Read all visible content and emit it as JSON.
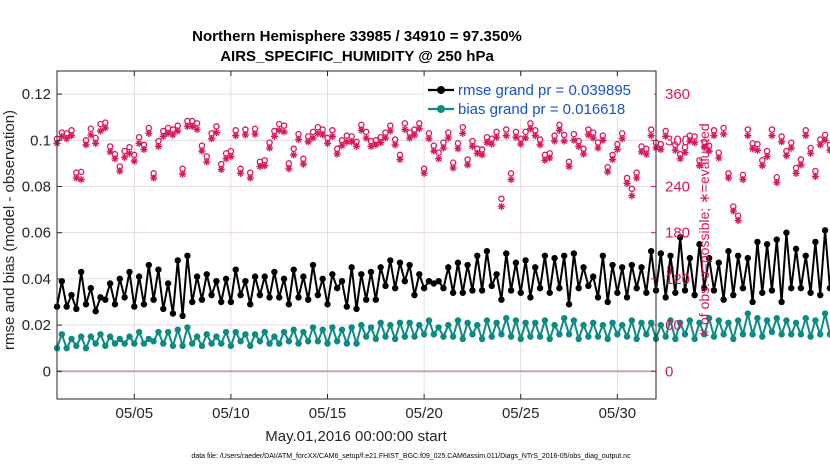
{
  "chart_data": {
    "type": "line",
    "title": "Northern Hemisphere 33985 / 34910 = 97.350%",
    "subtitle": "AIRS_SPECIFIC_HUMIDITY @ 250 hPa",
    "xlabel": "May.01,2016 00:00:00 start",
    "ylabel": "rmse and bias (model - observation)",
    "y2label": "# of obs: o=possible; ∗=evaluated",
    "xlim": [
      1,
      32
    ],
    "ylim": [
      -0.012,
      0.13
    ],
    "y2lim": [
      -36,
      390
    ],
    "x_ticks": [
      5,
      10,
      15,
      20,
      25,
      30
    ],
    "x_tick_labels": [
      "05/05",
      "05/10",
      "05/15",
      "05/20",
      "05/25",
      "05/30"
    ],
    "y_ticks": [
      0,
      0.02,
      0.04,
      0.06,
      0.08,
      0.1,
      0.12
    ],
    "y_tick_labels": [
      "0",
      "0.02",
      "0.04",
      "0.06",
      "0.08",
      "0.1",
      "0.12"
    ],
    "y2_ticks": [
      0,
      60,
      120,
      180,
      240,
      300,
      360
    ],
    "y2_tick_labels": [
      "0",
      "60",
      "120",
      "180",
      "240",
      "300",
      "360"
    ],
    "legend_position": "top-right",
    "colors": {
      "rmse": "#000000",
      "bias": "#0e8a84",
      "obs": "#d6175e",
      "grid": "#e3d2d9",
      "zero_line": "#c9a3b0"
    },
    "series": [
      {
        "name": "rmse grand pr = 0.039895",
        "marker": "circle",
        "start_day": 1.0,
        "step_days": 0.25,
        "values": [
          0.028,
          0.039,
          0.028,
          0.033,
          0.027,
          0.043,
          0.029,
          0.036,
          0.026,
          0.032,
          0.031,
          0.038,
          0.029,
          0.04,
          0.032,
          0.043,
          0.028,
          0.041,
          0.029,
          0.046,
          0.031,
          0.044,
          0.027,
          0.038,
          0.025,
          0.048,
          0.024,
          0.05,
          0.03,
          0.041,
          0.031,
          0.042,
          0.033,
          0.039,
          0.03,
          0.04,
          0.03,
          0.044,
          0.033,
          0.039,
          0.029,
          0.041,
          0.033,
          0.041,
          0.032,
          0.043,
          0.032,
          0.04,
          0.029,
          0.044,
          0.032,
          0.041,
          0.031,
          0.046,
          0.033,
          0.04,
          0.029,
          0.042,
          0.036,
          0.039,
          0.028,
          0.045,
          0.027,
          0.042,
          0.031,
          0.043,
          0.031,
          0.045,
          0.037,
          0.048,
          0.036,
          0.047,
          0.039,
          0.046,
          0.033,
          0.042,
          0.036,
          0.039,
          0.038,
          0.039,
          0.036,
          0.045,
          0.034,
          0.047,
          0.034,
          0.046,
          0.035,
          0.05,
          0.035,
          0.052,
          0.037,
          0.042,
          0.031,
          0.051,
          0.035,
          0.047,
          0.034,
          0.048,
          0.032,
          0.045,
          0.036,
          0.05,
          0.034,
          0.049,
          0.036,
          0.05,
          0.029,
          0.051,
          0.036,
          0.045,
          0.037,
          0.041,
          0.032,
          0.05,
          0.03,
          0.046,
          0.034,
          0.045,
          0.032,
          0.046,
          0.036,
          0.045,
          0.034,
          0.052,
          0.035,
          0.051,
          0.032,
          0.05,
          0.034,
          0.058,
          0.035,
          0.049,
          0.033,
          0.055,
          0.036,
          0.049,
          0.035,
          0.047,
          0.031,
          0.052,
          0.033,
          0.05,
          0.036,
          0.049,
          0.03,
          0.056,
          0.034,
          0.055,
          0.035,
          0.057,
          0.03,
          0.06,
          0.036,
          0.053,
          0.036,
          0.05,
          0.034,
          0.056,
          0.033,
          0.061,
          0.036,
          0.058,
          0.031,
          0.052,
          0.035,
          0.049,
          0.038,
          0.048,
          0.04,
          0.055,
          0.04,
          0.054,
          0.038,
          0.054,
          0.04,
          0.055,
          0.039
        ]
      },
      {
        "name": "bias grand pr = 0.016618",
        "marker": "circle",
        "start_day": 1.0,
        "step_days": 0.25,
        "values": [
          0.01,
          0.016,
          0.01,
          0.014,
          0.011,
          0.015,
          0.01,
          0.015,
          0.012,
          0.016,
          0.011,
          0.015,
          0.012,
          0.014,
          0.012,
          0.015,
          0.012,
          0.017,
          0.012,
          0.014,
          0.013,
          0.017,
          0.012,
          0.017,
          0.011,
          0.018,
          0.011,
          0.019,
          0.012,
          0.015,
          0.011,
          0.016,
          0.012,
          0.015,
          0.012,
          0.017,
          0.011,
          0.017,
          0.013,
          0.016,
          0.011,
          0.016,
          0.013,
          0.017,
          0.012,
          0.015,
          0.012,
          0.017,
          0.013,
          0.018,
          0.012,
          0.017,
          0.013,
          0.019,
          0.013,
          0.018,
          0.012,
          0.019,
          0.013,
          0.018,
          0.012,
          0.019,
          0.012,
          0.02,
          0.015,
          0.019,
          0.014,
          0.021,
          0.015,
          0.02,
          0.014,
          0.021,
          0.015,
          0.021,
          0.015,
          0.02,
          0.016,
          0.022,
          0.016,
          0.019,
          0.015,
          0.02,
          0.015,
          0.022,
          0.014,
          0.021,
          0.016,
          0.02,
          0.014,
          0.022,
          0.015,
          0.021,
          0.016,
          0.023,
          0.015,
          0.022,
          0.014,
          0.021,
          0.015,
          0.021,
          0.015,
          0.022,
          0.014,
          0.02,
          0.016,
          0.023,
          0.016,
          0.022,
          0.014,
          0.02,
          0.015,
          0.021,
          0.015,
          0.02,
          0.014,
          0.021,
          0.016,
          0.02,
          0.015,
          0.022,
          0.014,
          0.021,
          0.016,
          0.021,
          0.014,
          0.02,
          0.015,
          0.022,
          0.014,
          0.021,
          0.016,
          0.022,
          0.014,
          0.021,
          0.016,
          0.023,
          0.015,
          0.022,
          0.016,
          0.021,
          0.014,
          0.022,
          0.016,
          0.025,
          0.016,
          0.023,
          0.015,
          0.022,
          0.017,
          0.023,
          0.016,
          0.022,
          0.016,
          0.021,
          0.016,
          0.023,
          0.015,
          0.022,
          0.016,
          0.025,
          0.016,
          0.023,
          0.015,
          0.022,
          0.017,
          0.022,
          0.016,
          0.023,
          0.018,
          0.022,
          0.016,
          0.023,
          0.017,
          0.022,
          0.016,
          0.023,
          0.017
        ]
      }
    ],
    "obs_possible": {
      "name": "o=possible",
      "marker": "o",
      "start_day": 1.0,
      "step_days": 0.25,
      "values": [
        302,
        310,
        309,
        313,
        258,
        259,
        300,
        315,
        303,
        321,
        323,
        292,
        282,
        266,
        286,
        291,
        281,
        304,
        294,
        316,
        257,
        299,
        312,
        316,
        314,
        319,
        263,
        325,
        325,
        322,
        293,
        279,
        309,
        318,
        269,
        283,
        286,
        313,
        263,
        314,
        258,
        315,
        272,
        274,
        297,
        312,
        321,
        319,
        270,
        289,
        308,
        276,
        305,
        311,
        317,
        314,
        303,
        313,
        289,
        300,
        306,
        305,
        298,
        320,
        311,
        299,
        300,
        304,
        310,
        319,
        301,
        281,
        322,
        310,
        314,
        322,
        263,
        309,
        293,
        284,
        297,
        310,
        271,
        296,
        317,
        275,
        299,
        289,
        288,
        304,
        302,
        311,
        224,
        314,
        257,
        311,
        302,
        311,
        322,
        313,
        301,
        281,
        283,
        306,
        320,
        307,
        272,
        308,
        299,
        289,
        314,
        310,
        297,
        306,
        265,
        281,
        295,
        309,
        251,
        237,
        258,
        292,
        289,
        314,
        297,
        295,
        312,
        134,
        294,
        282,
        291,
        306,
        305,
        274,
        298,
        293,
        313,
        284,
        316,
        257,
        214,
        202,
        255,
        314,
        296,
        295,
        274,
        286,
        314,
        252,
        305,
        286,
        297,
        264,
        275,
        313,
        290,
        260,
        301,
        307,
        294,
        301,
        302,
        264,
        279,
        301,
        250,
        280,
        318,
        311,
        292,
        308,
        252,
        304,
        282,
        315,
        300,
        274,
        318,
        304,
        300,
        312,
        304,
        258,
        315,
        314,
        300,
        275,
        319,
        311,
        305,
        319,
        2
      ]
    },
    "obs_evaluated": {
      "name": "∗=evaluated",
      "marker": "*",
      "start_day": 1.0,
      "step_days": 0.25,
      "values": [
        296,
        305,
        302,
        306,
        251,
        249,
        294,
        307,
        296,
        312,
        316,
        285,
        276,
        260,
        278,
        283,
        273,
        296,
        288,
        309,
        251,
        292,
        305,
        309,
        307,
        312,
        256,
        318,
        318,
        314,
        286,
        272,
        302,
        310,
        262,
        276,
        279,
        306,
        257,
        307,
        251,
        308,
        266,
        267,
        290,
        305,
        313,
        311,
        263,
        281,
        301,
        269,
        298,
        303,
        309,
        307,
        296,
        305,
        282,
        293,
        298,
        298,
        292,
        313,
        303,
        292,
        294,
        297,
        303,
        312,
        294,
        275,
        314,
        303,
        307,
        315,
        257,
        302,
        286,
        276,
        290,
        303,
        264,
        289,
        309,
        268,
        292,
        283,
        281,
        297,
        295,
        304,
        214,
        306,
        249,
        304,
        295,
        303,
        315,
        306,
        294,
        274,
        277,
        299,
        313,
        299,
        266,
        300,
        292,
        282,
        307,
        303,
        290,
        300,
        259,
        275,
        288,
        302,
        244,
        228,
        251,
        285,
        282,
        306,
        290,
        288,
        305,
        130,
        287,
        276,
        284,
        299,
        297,
        267,
        291,
        286,
        306,
        277,
        308,
        251,
        208,
        196,
        249,
        306,
        289,
        287,
        267,
        279,
        306,
        245,
        298,
        280,
        290,
        257,
        268,
        306,
        283,
        253,
        294,
        300,
        287,
        294,
        295,
        257,
        272,
        294,
        243,
        273,
        311,
        303,
        285,
        301,
        245,
        297,
        275,
        308,
        293,
        267,
        311,
        297,
        293,
        305,
        297,
        251,
        308,
        307,
        293,
        268,
        312,
        304,
        298,
        312,
        0
      ]
    },
    "footer": "data file: /Users/raeder/DAI/ATM_forcXX/CAM6_setup/f.e21.FHIST_BGC.f09_025.CAM6assim.011/Diags_NTrS_2016-05/obs_diag_output.nc"
  }
}
